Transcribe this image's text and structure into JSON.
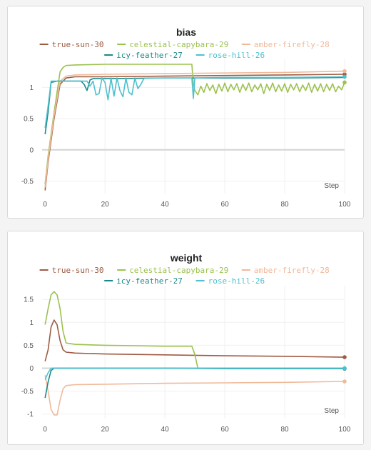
{
  "chart_data": [
    {
      "type": "line",
      "title": "bias",
      "xlabel": "Step",
      "ylabel": "",
      "xlim": [
        -1,
        100
      ],
      "ylim": [
        -0.7,
        1.45
      ],
      "xticks": [
        0,
        20,
        40,
        60,
        80,
        100
      ],
      "yticks": [
        -0.5,
        0,
        0.5,
        1
      ],
      "zero_line": true,
      "legend": "top",
      "series": [
        {
          "name": "true-sun-30",
          "color": "#9e5b42",
          "end_marker": true,
          "x": [
            0,
            1,
            3,
            5,
            7,
            10,
            20,
            40,
            60,
            80,
            100
          ],
          "y": [
            -0.65,
            -0.2,
            0.5,
            1.05,
            1.15,
            1.17,
            1.17,
            1.18,
            1.19,
            1.2,
            1.21
          ]
        },
        {
          "name": "celestial-capybara-29",
          "color": "#9cc24f",
          "end_marker": true,
          "x": [
            0,
            1,
            3,
            5,
            6,
            7,
            10,
            20,
            30,
            40,
            49,
            49.5,
            50,
            51,
            52,
            53,
            54,
            55,
            56,
            57,
            58,
            59,
            60,
            61,
            62,
            63,
            64,
            65,
            66,
            67,
            68,
            69,
            70,
            71,
            72,
            73,
            74,
            75,
            76,
            77,
            78,
            79,
            80,
            81,
            82,
            83,
            84,
            85,
            86,
            87,
            88,
            89,
            90,
            91,
            92,
            93,
            94,
            95,
            96,
            97,
            98,
            99,
            100
          ],
          "y": [
            -0.55,
            -0.1,
            0.6,
            1.25,
            1.32,
            1.35,
            1.36,
            1.37,
            1.37,
            1.37,
            1.37,
            1.05,
            0.95,
            0.88,
            1.02,
            0.92,
            1.06,
            0.95,
            1.04,
            0.9,
            1.05,
            0.94,
            1.07,
            0.93,
            1.05,
            0.96,
            1.06,
            0.92,
            1.05,
            0.95,
            1.07,
            0.93,
            1.04,
            0.96,
            1.06,
            0.9,
            1.05,
            0.95,
            1.07,
            0.93,
            1.04,
            0.94,
            1.06,
            0.92,
            1.05,
            0.96,
            1.06,
            0.93,
            1.04,
            0.95,
            1.07,
            0.92,
            1.05,
            0.94,
            1.06,
            0.93,
            1.05,
            0.95,
            1.06,
            0.93,
            1.02,
            0.96,
            1.08
          ]
        },
        {
          "name": "amber-firefly-28",
          "color": "#f0b99a",
          "end_marker": true,
          "x": [
            0,
            1,
            3,
            5,
            7,
            10,
            20,
            40,
            60,
            80,
            100
          ],
          "y": [
            -0.6,
            -0.15,
            0.55,
            1.1,
            1.18,
            1.2,
            1.21,
            1.22,
            1.23,
            1.24,
            1.26
          ]
        },
        {
          "name": "icy-feather-27",
          "color": "#1a8a89",
          "end_marker": false,
          "x": [
            0,
            1,
            2,
            4,
            8,
            12,
            13,
            14,
            15,
            16,
            20,
            40,
            60,
            80,
            100
          ],
          "y": [
            0.25,
            0.6,
            1.08,
            1.1,
            1.1,
            1.1,
            1.05,
            0.95,
            1.12,
            1.14,
            1.14,
            1.15,
            1.15,
            1.15,
            1.16
          ]
        },
        {
          "name": "rose-hill-26",
          "color": "#4fc0d0",
          "end_marker": true,
          "x": [
            0,
            1,
            2,
            4,
            8,
            12,
            14,
            15,
            16,
            17,
            18,
            19,
            20,
            21,
            22,
            23,
            24,
            25,
            26,
            27,
            28,
            29,
            30,
            31,
            32,
            33,
            34,
            35,
            48,
            49,
            49.5,
            50,
            60,
            80,
            100
          ],
          "y": [
            0.35,
            0.7,
            1.1,
            1.1,
            1.1,
            1.1,
            1.1,
            1.02,
            1.1,
            0.88,
            0.9,
            1.15,
            1.08,
            0.8,
            1.15,
            0.86,
            1.15,
            0.95,
            0.85,
            1.15,
            0.92,
            0.88,
            1.15,
            0.98,
            1.05,
            1.14,
            1.15,
            1.15,
            1.15,
            1.15,
            0.82,
            1.15,
            1.16,
            1.16,
            1.17
          ]
        }
      ]
    },
    {
      "type": "line",
      "title": "weight",
      "xlabel": "Step",
      "ylabel": "",
      "xlim": [
        -1,
        100
      ],
      "ylim": [
        -1.1,
        1.8
      ],
      "xticks": [
        0,
        20,
        40,
        60,
        80,
        100
      ],
      "yticks": [
        -1,
        -0.5,
        0,
        0.5,
        1,
        1.5
      ],
      "zero_line": true,
      "legend": "top",
      "series": [
        {
          "name": "true-sun-30",
          "color": "#9e5b42",
          "end_marker": true,
          "x": [
            0,
            1,
            2,
            3,
            4,
            5,
            6,
            7,
            10,
            20,
            40,
            60,
            80,
            100
          ],
          "y": [
            0.15,
            0.4,
            0.9,
            1.05,
            0.95,
            0.6,
            0.4,
            0.35,
            0.33,
            0.31,
            0.29,
            0.27,
            0.26,
            0.24
          ]
        },
        {
          "name": "celestial-capybara-29",
          "color": "#9cc24f",
          "end_marker": false,
          "x": [
            0,
            1,
            2,
            3,
            4,
            5,
            6,
            7,
            10,
            20,
            30,
            40,
            49,
            50,
            51,
            60,
            80,
            100
          ],
          "y": [
            0.95,
            1.3,
            1.6,
            1.67,
            1.6,
            1.3,
            0.8,
            0.55,
            0.52,
            0.5,
            0.49,
            0.48,
            0.48,
            0.3,
            0.0,
            0.0,
            0.0,
            0.0
          ]
        },
        {
          "name": "amber-firefly-28",
          "color": "#f0b99a",
          "end_marker": true,
          "x": [
            0,
            1,
            2,
            3,
            4,
            5,
            6,
            7,
            10,
            20,
            40,
            60,
            80,
            100
          ],
          "y": [
            -0.15,
            -0.5,
            -0.9,
            -1.02,
            -1.02,
            -0.7,
            -0.45,
            -0.38,
            -0.36,
            -0.35,
            -0.33,
            -0.32,
            -0.31,
            -0.29
          ]
        },
        {
          "name": "icy-feather-27",
          "color": "#1a8a89",
          "end_marker": true,
          "x": [
            0,
            1,
            2,
            3,
            5,
            10,
            20,
            40,
            60,
            80,
            100
          ],
          "y": [
            -0.65,
            -0.3,
            -0.05,
            0.0,
            0.0,
            0.0,
            0.0,
            0.0,
            -0.01,
            -0.01,
            -0.01
          ]
        },
        {
          "name": "rose-hill-26",
          "color": "#4fc0d0",
          "end_marker": true,
          "x": [
            0,
            1,
            2,
            3,
            5,
            10,
            20,
            40,
            60,
            80,
            100
          ],
          "y": [
            -0.25,
            -0.1,
            0.0,
            0.0,
            0.0,
            0.0,
            0.0,
            0.0,
            0.0,
            0.0,
            0.0
          ]
        }
      ]
    }
  ]
}
